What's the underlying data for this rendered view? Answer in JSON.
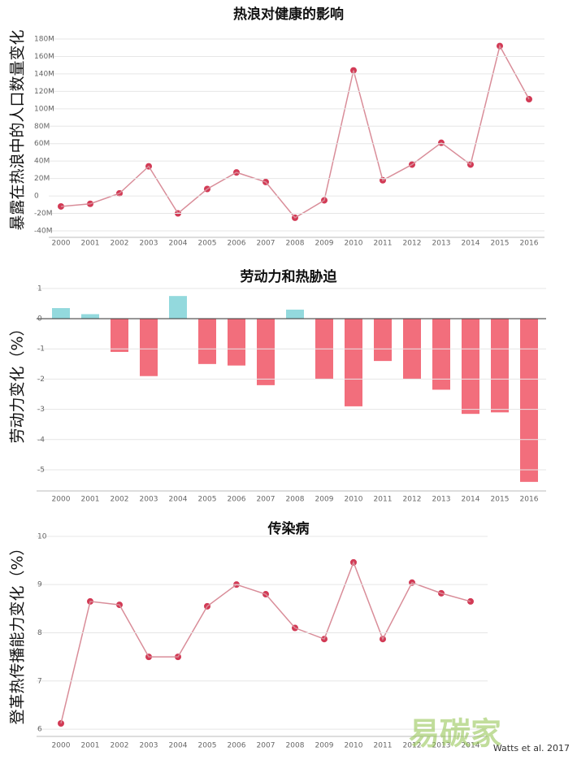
{
  "chart_data": [
    {
      "type": "line",
      "title": "热浪对健康的影响",
      "y_label": "暴露在热浪中的人口数量变化",
      "categories": [
        "2000",
        "2001",
        "2002",
        "2003",
        "2004",
        "2005",
        "2006",
        "2007",
        "2008",
        "2009",
        "2010",
        "2011",
        "2012",
        "2013",
        "2014",
        "2015",
        "2016"
      ],
      "values": [
        -12,
        -9,
        3,
        34,
        -20,
        8,
        27,
        16,
        -25,
        -5,
        144,
        18,
        36,
        61,
        36,
        172,
        111
      ],
      "line_color": "#d98d99",
      "color": "#d23a55",
      "ylim": [
        -40,
        180
      ],
      "yticks": [
        {
          "value": -40,
          "label": "-40M"
        },
        {
          "value": -20,
          "label": "-20M"
        },
        {
          "value": 0,
          "label": "0"
        },
        {
          "value": 20,
          "label": "20M"
        },
        {
          "value": 40,
          "label": "40M"
        },
        {
          "value": 60,
          "label": "60M"
        },
        {
          "value": 80,
          "label": "80M"
        },
        {
          "value": 100,
          "label": "100M"
        },
        {
          "value": 120,
          "label": "120M"
        },
        {
          "value": 140,
          "label": "140M"
        },
        {
          "value": 160,
          "label": "160M"
        },
        {
          "value": 180,
          "label": "180M"
        }
      ],
      "grid": true
    },
    {
      "type": "bar",
      "title": "劳动力和热胁迫",
      "y_label": "劳动力变化（%）",
      "categories": [
        "2000",
        "2001",
        "2002",
        "2003",
        "2004",
        "2005",
        "2006",
        "2007",
        "2008",
        "2009",
        "2010",
        "2011",
        "2012",
        "2013",
        "2014",
        "2015",
        "2016"
      ],
      "values": [
        0.35,
        0.15,
        -1.1,
        -1.9,
        0.75,
        -1.5,
        -1.55,
        -2.2,
        0.3,
        -2.0,
        -2.9,
        -1.4,
        -2.0,
        -2.35,
        -3.15,
        -3.1,
        -5.4
      ],
      "positive_color": "#93d9dd",
      "negative_color": "#f26e7c",
      "ylim": [
        -5.7,
        1.4
      ],
      "yticks": [
        1,
        0,
        -1,
        -2,
        -3,
        -4,
        -5
      ],
      "grid": true
    },
    {
      "type": "line",
      "title": "传染病",
      "y_label": "登革热传播能力变化（%）",
      "categories": [
        "2000",
        "2001",
        "2002",
        "2003",
        "2004",
        "2005",
        "2006",
        "2007",
        "2008",
        "2009",
        "2010",
        "2011",
        "2012",
        "2013",
        "2014"
      ],
      "values": [
        6.12,
        8.65,
        8.58,
        7.5,
        7.5,
        8.55,
        9.0,
        8.8,
        8.1,
        7.87,
        9.46,
        7.87,
        9.04,
        8.82,
        8.65
      ],
      "line_color": "#d98d99",
      "color": "#d23a55",
      "ylim": [
        5.85,
        10.2
      ],
      "yticks": [
        6,
        7,
        8,
        9,
        10
      ],
      "grid": true
    }
  ],
  "source": "Watts et al. 2017",
  "watermark": "易碳家",
  "watermark_url": "tanjiaoyi.com"
}
